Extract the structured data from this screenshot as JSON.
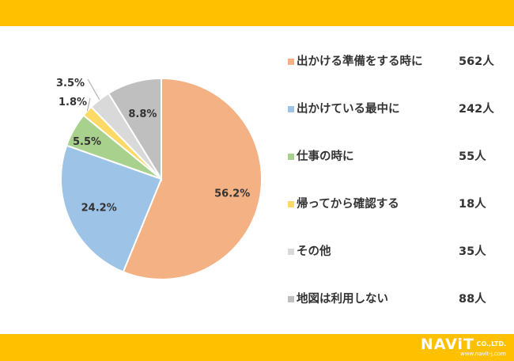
{
  "chart_data": {
    "type": "pie",
    "title": "",
    "slices": [
      {
        "label": "出かける準備をする時に",
        "count": "562人",
        "percent": 56.2,
        "percent_label": "56.2%",
        "color": "#F4B183"
      },
      {
        "label": "出かけている最中に",
        "count": "242人",
        "percent": 24.2,
        "percent_label": "24.2%",
        "color": "#9DC3E6"
      },
      {
        "label": "仕事の時に",
        "count": "55人",
        "percent": 5.5,
        "percent_label": "5.5%",
        "color": "#A9D18E"
      },
      {
        "label": "帰ってから確認する",
        "count": "18人",
        "percent": 1.8,
        "percent_label": "1.8%",
        "color": "#FFD966"
      },
      {
        "label": "その他",
        "count": "35人",
        "percent": 3.5,
        "percent_label": "3.5%",
        "color": "#D9D9D9"
      },
      {
        "label": "地図は利用しない",
        "count": "88人",
        "percent": 8.8,
        "percent_label": "8.8%",
        "color": "#BFBFBF"
      }
    ],
    "legend_position": "right"
  },
  "branding": {
    "logo": "NAViT",
    "company": "CO.,LTD.",
    "url": "www.navit-j.com",
    "band_color": "#FFC000"
  }
}
